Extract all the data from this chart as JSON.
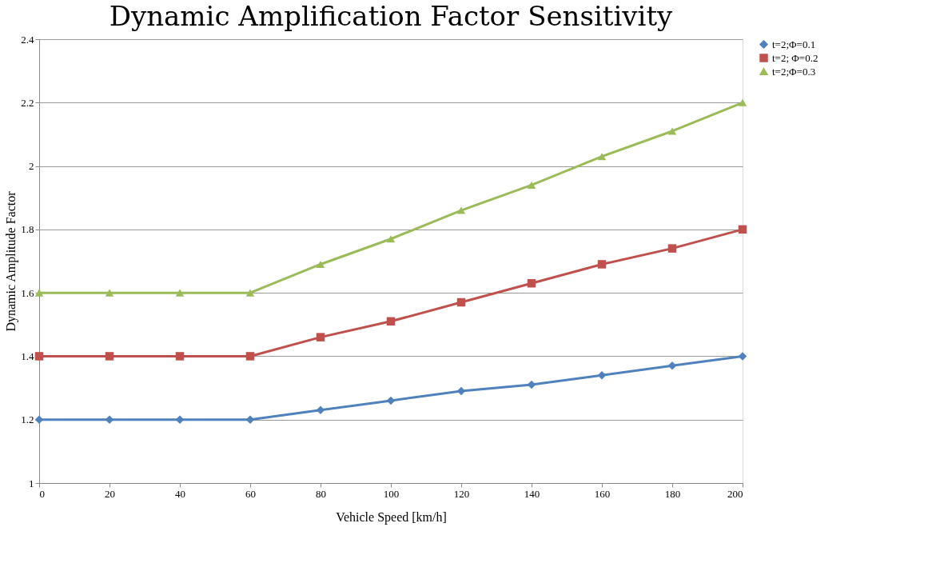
{
  "chart_data": {
    "type": "line",
    "title": "Dynamic Amplification Factor Sensitivity",
    "xlabel": "Vehicle Speed [km/h]",
    "ylabel": "Dynamic Amplitude Factor",
    "x": [
      0,
      20,
      40,
      60,
      80,
      100,
      120,
      140,
      160,
      180,
      200
    ],
    "series": [
      {
        "name": "t=2;Φ=0.1",
        "color": "#4f81bd",
        "marker": "diamond",
        "values": [
          1.2,
          1.2,
          1.2,
          1.2,
          1.23,
          1.26,
          1.29,
          1.31,
          1.34,
          1.37,
          1.4
        ]
      },
      {
        "name": "t=2; Φ=0.2",
        "color": "#c0504d",
        "marker": "square",
        "values": [
          1.4,
          1.4,
          1.4,
          1.4,
          1.46,
          1.51,
          1.57,
          1.63,
          1.69,
          1.74,
          1.8
        ]
      },
      {
        "name": "t=2;Φ=0.3",
        "color": "#9bbb59",
        "marker": "triangle",
        "values": [
          1.6,
          1.6,
          1.6,
          1.6,
          1.69,
          1.77,
          1.86,
          1.94,
          2.03,
          2.11,
          2.2
        ]
      }
    ],
    "xlim": [
      0,
      200
    ],
    "xticks": [
      0,
      20,
      40,
      60,
      80,
      100,
      120,
      140,
      160,
      180,
      200
    ],
    "ylim": [
      1,
      2.4
    ],
    "yticks": [
      1,
      1.2,
      1.4,
      1.6,
      1.8,
      2,
      2.2,
      2.4
    ],
    "grid": "y",
    "legend": "right",
    "line_style": "solid"
  }
}
